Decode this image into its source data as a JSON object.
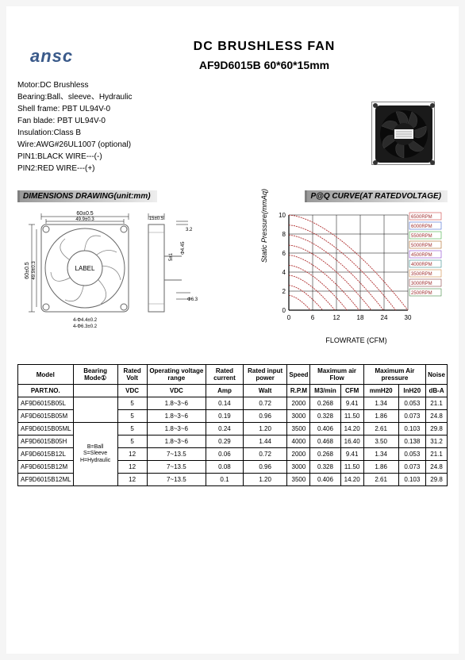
{
  "logo_text": "ansc",
  "title": "DC BRUSHLESS FAN",
  "subtitle": "AF9D6015B    60*60*15mm",
  "specs": [
    "Motor:DC Brushless",
    "Bearing:Ball、sleeve、Hydraulic",
    "Shell  frame: PBT UL94V-0",
    "Fan  blade: PBT  UL94V-0",
    "Insulation:Class B",
    "Wire:AWG#26UL1007 (optional)",
    "PIN1:BLACK WIRE---(-)",
    "PIN2:RED WIRE---(+)"
  ],
  "section_dim": "DIMENSIONS DRAWING(unit:mm)",
  "section_pq": "P@Q CURVE(AT RATEDVOLTAGE)",
  "drawing_labels": {
    "outer": "60±0.5",
    "inner": "49.9±0.3",
    "thickness": "15±0.5",
    "label_text": "LABEL",
    "mount": "4-Φ4.4±0.2",
    "mount2": "4-Φ6.3±0.2",
    "wire_gap": "3.2",
    "wire_d": "Φ6.3",
    "hub_d": "Φ4.45",
    "side_dim": "5±1"
  },
  "pq": {
    "y_label": "Static Pressure(mmAq)",
    "x_label": "FLOWRATE (CFM)",
    "y_max": 10,
    "y_ticks": [
      0,
      2,
      4,
      6,
      8,
      10
    ],
    "x_max": 30,
    "x_ticks": [
      0,
      6,
      12,
      18,
      24,
      30
    ],
    "rpm_labels": [
      "6500RPM",
      "6000RPM",
      "5500RPM",
      "5000RPM",
      "4500RPM",
      "4000RPM",
      "3500RPM",
      "3000RPM",
      "2500RPM"
    ],
    "curve_color": "#b03030",
    "rpm_colors": [
      "#cc4444",
      "#4466cc",
      "#44aa44",
      "#aa6622",
      "#8844cc",
      "#338888",
      "#cc8844",
      "#884444",
      "#448844"
    ],
    "grid_color": "#000000",
    "bg": "#ffffff"
  },
  "table": {
    "head_row1": [
      "Model",
      "Bearing Mode①",
      "Rated Volt",
      "Operating voltage range",
      "Rated current",
      "Rated input power",
      "Speed",
      "Maximum air Flow",
      "",
      "Maximum Air pressure",
      "",
      "Noise"
    ],
    "head_row2": [
      "PART.NO.",
      "",
      "VDC",
      "VDC",
      "Amp",
      "Walt",
      "R.P.M",
      "M3/min",
      "CFM",
      "mmH20",
      "InH20",
      "dB-A"
    ],
    "bearing_key": "B=Ball\nS=Sleeve\nH=Hydraulic",
    "rows": [
      [
        "AF9D6015B05L",
        "5",
        "1.8~3~6",
        "0.14",
        "0.72",
        "2000",
        "0.268",
        "9.41",
        "1.34",
        "0.053",
        "21.1"
      ],
      [
        "AF9D6015B05M",
        "5",
        "1.8~3~6",
        "0.19",
        "0.96",
        "3000",
        "0.328",
        "11.50",
        "1.86",
        "0.073",
        "24.8"
      ],
      [
        "AF9D6015B05ML",
        "5",
        "1.8~3~6",
        "0.24",
        "1.20",
        "3500",
        "0.406",
        "14.20",
        "2.61",
        "0.103",
        "29.8"
      ],
      [
        "AF9D6015B05H",
        "5",
        "1.8~3~6",
        "0.29",
        "1.44",
        "4000",
        "0.468",
        "16.40",
        "3.50",
        "0.138",
        "31.2"
      ],
      [
        "AF9D6015B12L",
        "12",
        "7~13.5",
        "0.06",
        "0.72",
        "2000",
        "0.268",
        "9.41",
        "1.34",
        "0.053",
        "21.1"
      ],
      [
        "AF9D6015B12M",
        "12",
        "7~13.5",
        "0.08",
        "0.96",
        "3000",
        "0.328",
        "11.50",
        "1.86",
        "0.073",
        "24.8"
      ],
      [
        "AF9D6015B12ML",
        "12",
        "7~13.5",
        "0.1",
        "1.20",
        "3500",
        "0.406",
        "14.20",
        "2.61",
        "0.103",
        "29.8"
      ]
    ]
  }
}
